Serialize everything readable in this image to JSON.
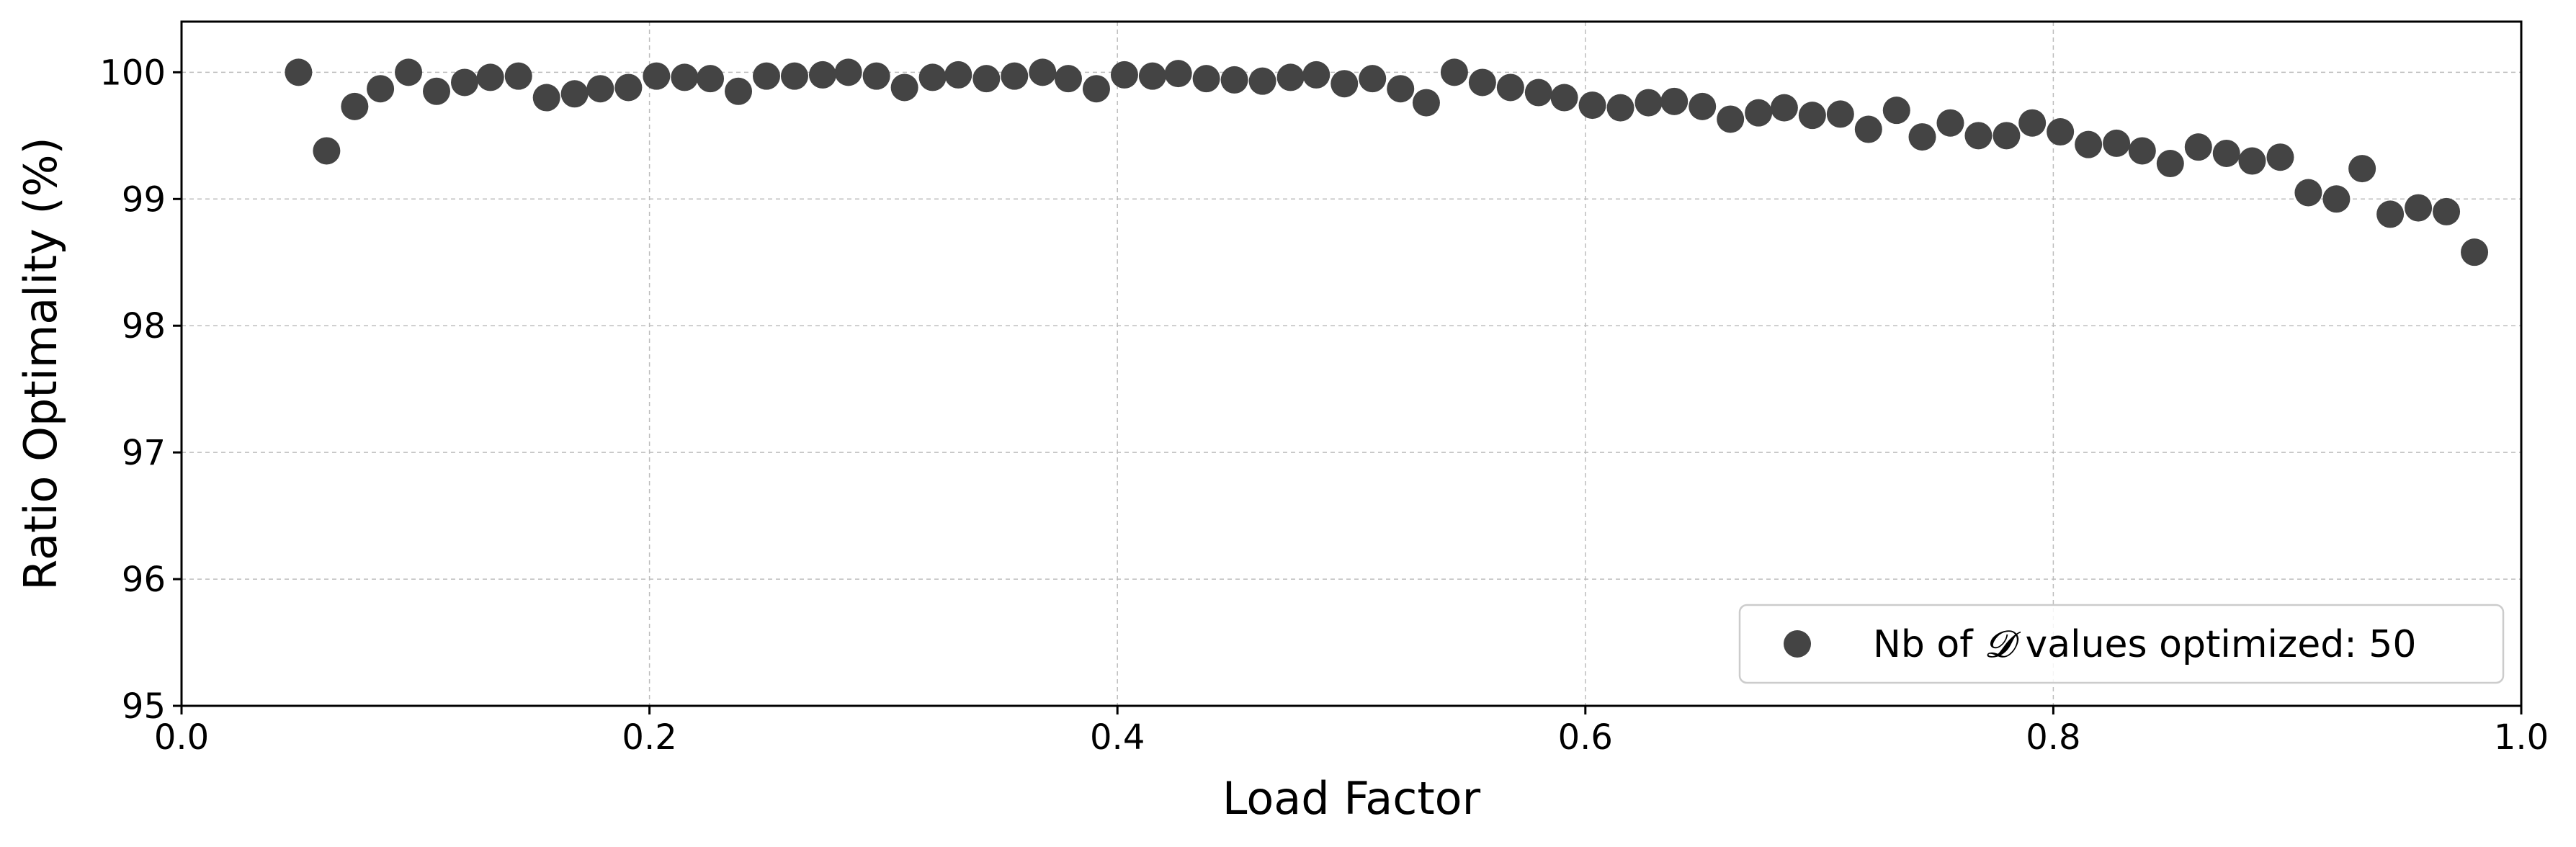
{
  "chart_data": {
    "type": "scatter",
    "xlabel": "Load Factor",
    "ylabel": "Ratio Optimality (%)",
    "xlim": [
      0.0,
      1.0
    ],
    "ylim": [
      95,
      100.4
    ],
    "xticks": [
      "0.0",
      "0.2",
      "0.4",
      "0.6",
      "0.8",
      "1.0"
    ],
    "yticks": [
      "95",
      "96",
      "97",
      "98",
      "99",
      "100"
    ],
    "grid": true,
    "legend_position": "lower-right",
    "marker_color": "#444444",
    "series": [
      {
        "legend_prefix": "Nb of ",
        "legend_symbol": "𝓓",
        "legend_suffix": " values optimized: 50",
        "x": [
          0.05,
          0.062,
          0.074,
          0.085,
          0.097,
          0.109,
          0.121,
          0.132,
          0.144,
          0.156,
          0.168,
          0.179,
          0.191,
          0.203,
          0.215,
          0.226,
          0.238,
          0.25,
          0.262,
          0.274,
          0.285,
          0.297,
          0.309,
          0.321,
          0.332,
          0.344,
          0.356,
          0.368,
          0.379,
          0.391,
          0.403,
          0.415,
          0.426,
          0.438,
          0.45,
          0.462,
          0.474,
          0.485,
          0.497,
          0.509,
          0.521,
          0.532,
          0.544,
          0.556,
          0.568,
          0.58,
          0.591,
          0.603,
          0.615,
          0.627,
          0.638,
          0.65,
          0.662,
          0.674,
          0.685,
          0.697,
          0.709,
          0.721,
          0.733,
          0.744,
          0.756,
          0.768,
          0.78,
          0.791,
          0.803,
          0.815,
          0.827,
          0.838,
          0.85,
          0.862,
          0.874,
          0.885,
          0.897,
          0.909,
          0.921,
          0.932,
          0.944,
          0.956,
          0.968,
          0.98
        ],
        "y": [
          100.0,
          99.38,
          99.73,
          99.87,
          100.0,
          99.85,
          99.92,
          99.96,
          99.97,
          99.8,
          99.83,
          99.87,
          99.88,
          99.97,
          99.96,
          99.95,
          99.85,
          99.97,
          99.97,
          99.98,
          100.0,
          99.97,
          99.88,
          99.96,
          99.98,
          99.95,
          99.97,
          100.0,
          99.95,
          99.87,
          99.98,
          99.97,
          99.99,
          99.95,
          99.94,
          99.93,
          99.96,
          99.98,
          99.91,
          99.95,
          99.87,
          99.76,
          100.0,
          99.92,
          99.88,
          99.84,
          99.8,
          99.74,
          99.72,
          99.76,
          99.77,
          99.73,
          99.63,
          99.68,
          99.72,
          99.66,
          99.67,
          99.55,
          99.7,
          99.49,
          99.6,
          99.5,
          99.5,
          99.6,
          99.53,
          99.43,
          99.44,
          99.38,
          99.28,
          99.41,
          99.36,
          99.3,
          99.33,
          99.05,
          99.0,
          99.24,
          98.88,
          98.93,
          98.9,
          98.58
        ]
      }
    ]
  }
}
